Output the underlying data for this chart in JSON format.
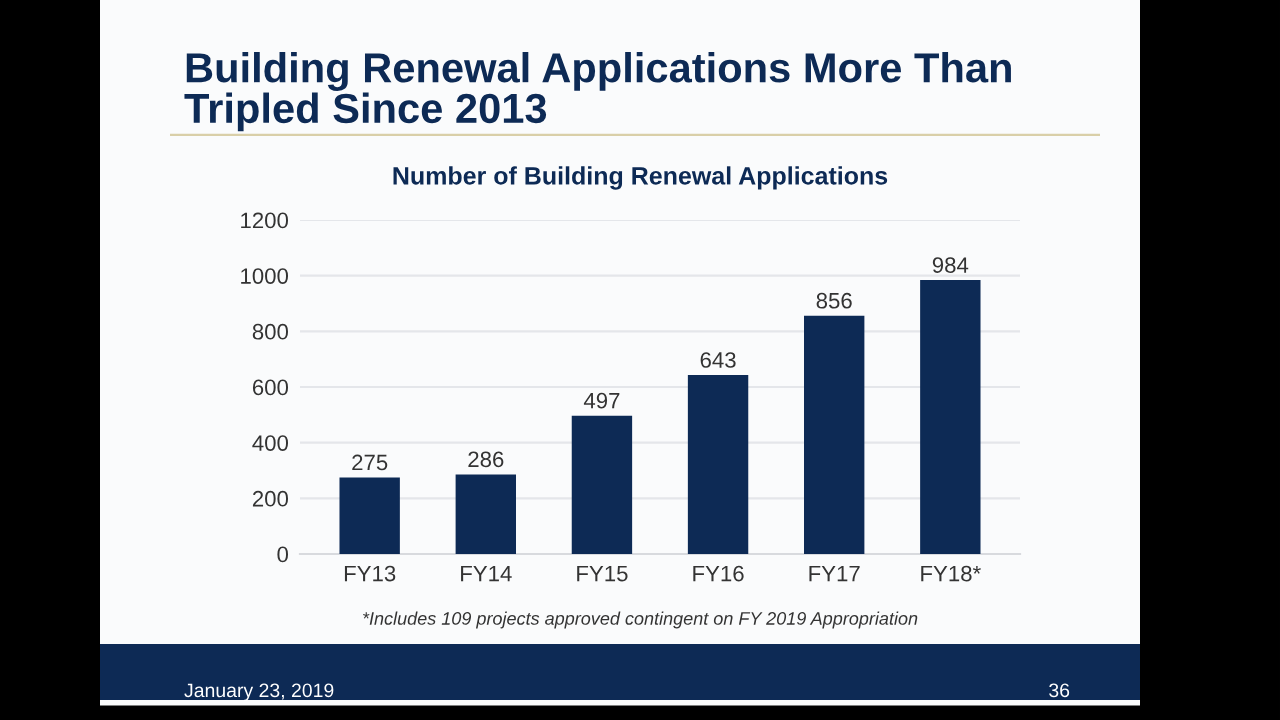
{
  "chart_data": {
    "type": "bar",
    "title": "Building Renewal Applications More Than\nTripled Since 2013",
    "subtitle": "Number of Building Renewal Applications",
    "categories": [
      "FY13",
      "FY14",
      "FY15",
      "FY16",
      "FY17",
      "FY18*"
    ],
    "values": [
      275,
      286,
      497,
      643,
      856,
      984
    ],
    "color": "#0d2a55",
    "ylim": [
      0,
      1200
    ],
    "yticks": [
      0,
      200,
      400,
      600,
      800,
      1000,
      1200
    ],
    "grid": "y",
    "data_labels": true,
    "annotations": [
      "*Includes 109 projects approved contingent on FY 2019 Appropriation",
      "January 23, 2019",
      "36"
    ]
  }
}
